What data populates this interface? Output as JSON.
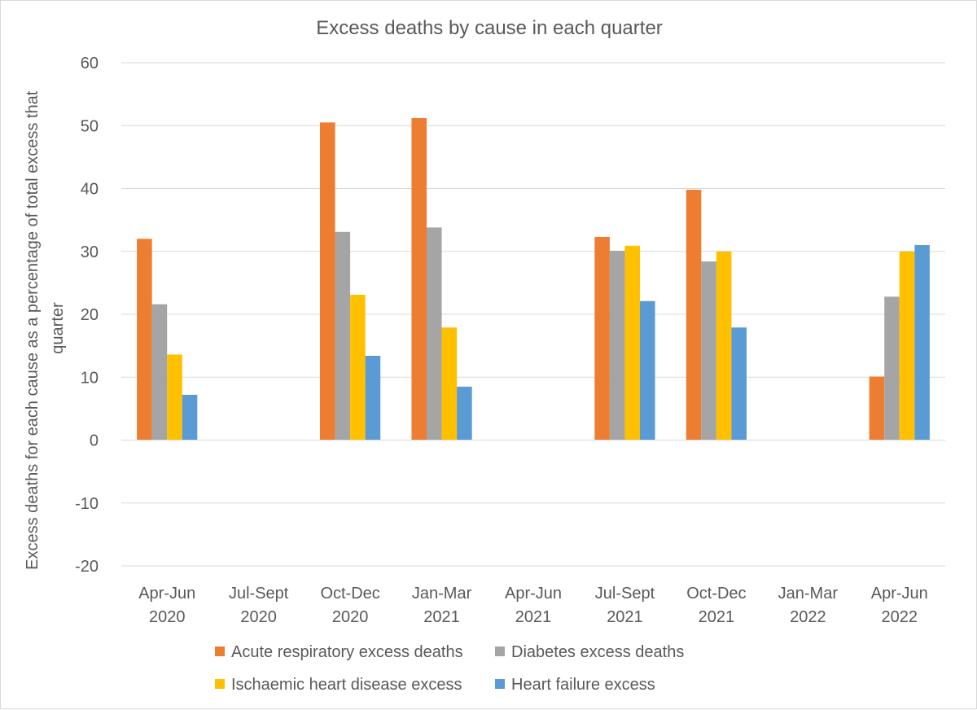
{
  "chart_data": {
    "type": "bar",
    "title": "Excess deaths by cause in each quarter",
    "ylabel_lines": [
      "Excess deaths for each cause as a percentage of total excess that",
      "quarter"
    ],
    "xlabel": "",
    "ylim": [
      -20,
      60
    ],
    "yticks": [
      60,
      50,
      40,
      30,
      20,
      10,
      0,
      -10,
      -20
    ],
    "grid": true,
    "legend_position": "bottom",
    "categories": [
      [
        "Apr-Jun",
        "2020"
      ],
      [
        "Jul-Sept",
        "2020"
      ],
      [
        "Oct-Dec",
        "2020"
      ],
      [
        "Jan-Mar",
        "2021"
      ],
      [
        "Apr-Jun",
        "2021"
      ],
      [
        "Jul-Sept",
        "2021"
      ],
      [
        "Oct-Dec",
        "2021"
      ],
      [
        "Jan-Mar",
        "2022"
      ],
      [
        "Apr-Jun",
        "2022"
      ]
    ],
    "series": [
      {
        "name": "Acute respiratory excess deaths",
        "color": "#ed7d31",
        "values": [
          32,
          null,
          50.5,
          51.2,
          null,
          32.3,
          39.8,
          null,
          10.1
        ]
      },
      {
        "name": "Diabetes excess deaths",
        "color": "#a5a5a5",
        "values": [
          21.6,
          null,
          33.1,
          33.8,
          null,
          30.1,
          28.4,
          null,
          22.8
        ]
      },
      {
        "name": "Ischaemic heart disease excess",
        "color": "#ffc000",
        "values": [
          13.6,
          null,
          23.1,
          17.9,
          null,
          30.9,
          30.0,
          null,
          30.0
        ]
      },
      {
        "name": "Heart failure excess",
        "color": "#5b9bd5",
        "values": [
          7.2,
          null,
          13.4,
          8.5,
          null,
          22.1,
          17.9,
          null,
          31.0
        ]
      }
    ]
  }
}
